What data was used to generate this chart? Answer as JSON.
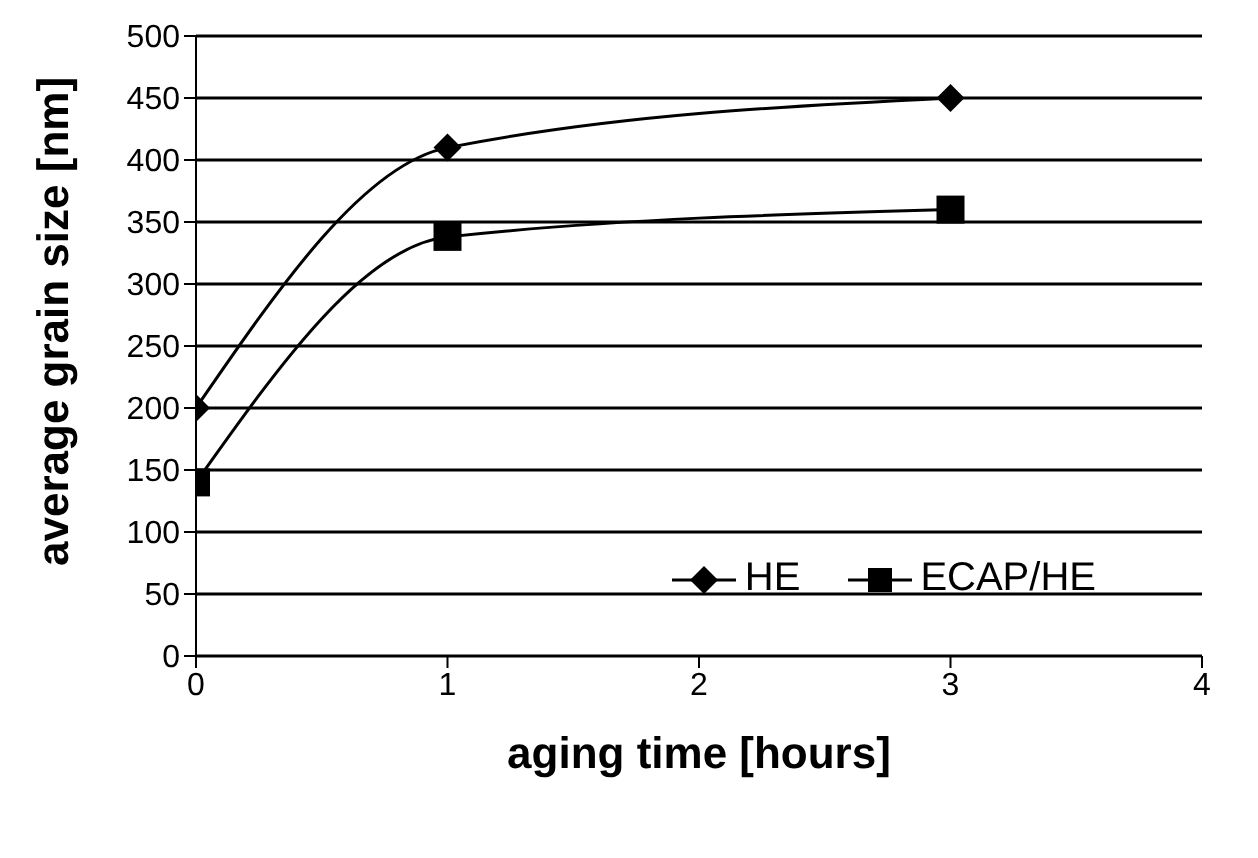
{
  "chart_data": {
    "type": "line",
    "xlabel": "aging time [hours]",
    "ylabel": "average grain size [nm]",
    "x": [
      0,
      1,
      3
    ],
    "series": [
      {
        "name": "HE",
        "color": "#000000",
        "values": [
          200,
          410,
          450
        ],
        "marker": "diamond"
      },
      {
        "name": "ECAP/HE",
        "color": "#000000",
        "values": [
          140,
          338,
          360
        ],
        "marker": "square"
      }
    ],
    "xlim": [
      0,
      4
    ],
    "xticks": [
      0,
      1,
      2,
      3,
      4
    ],
    "ylim": [
      0,
      500
    ],
    "yticks": [
      0,
      50,
      100,
      150,
      200,
      250,
      300,
      350,
      400,
      450,
      500
    ],
    "grid": "y",
    "legend": "bottom right",
    "line_style": "solid"
  }
}
